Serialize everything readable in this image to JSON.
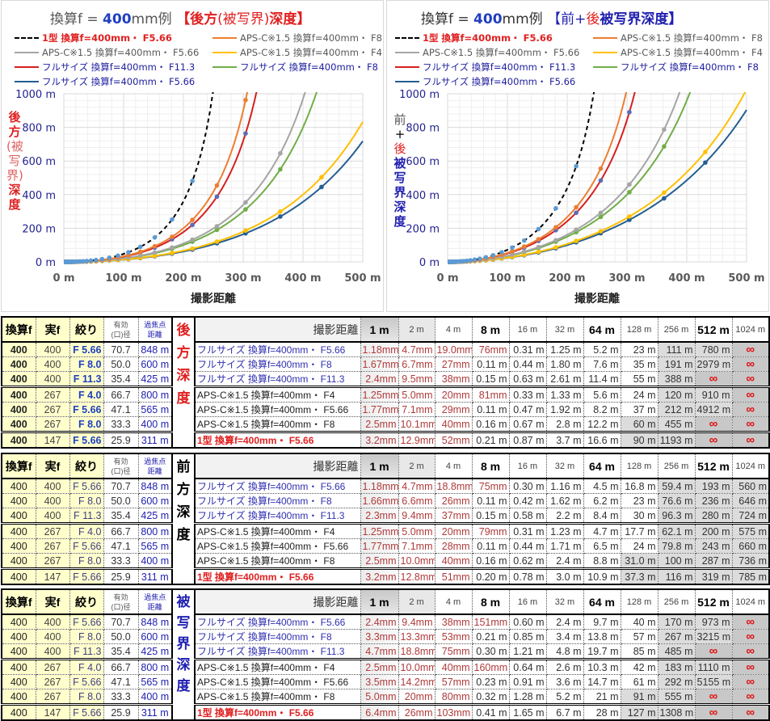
{
  "charts": [
    {
      "id": "left",
      "title": {
        "prefix": "換算f = ",
        "focal": "400",
        "unit": "mm例 ",
        "part1": "【後方",
        "part2": "(被写界)",
        "part3": "深度】"
      },
      "ylabel": {
        "p1": "後方",
        "p2": "(被写界)",
        "p3": "深度"
      },
      "mode": "rear"
    },
    {
      "id": "right",
      "title": {
        "prefix": "換算f = ",
        "focal": "400",
        "unit": "mm例 ",
        "part1": "【前+",
        "part2": "後",
        "part3": "被写界深度】"
      },
      "ylabel": {
        "p1": "前",
        "p2": "+",
        "p3": "後",
        "p4": "被写界深度"
      },
      "mode": "total"
    }
  ],
  "chart_data": {
    "type": "line",
    "xlabel": "撮影距離",
    "xlim": [
      0,
      500
    ],
    "ylim": [
      0,
      1000
    ],
    "xticks": [
      "0 m",
      "100 m",
      "200 m",
      "300 m",
      "400 m",
      "500 m"
    ],
    "yticks": [
      "0 m",
      "200 m",
      "400 m",
      "600 m",
      "800 m",
      "1000 m"
    ],
    "marker_distances": [
      1,
      1.19,
      1.41,
      1.68,
      2,
      2.38,
      2.83,
      3.36,
      4,
      4.76,
      5.66,
      6.73,
      8,
      9.51,
      11.3,
      13.5,
      16,
      19,
      22.6,
      26.9,
      32,
      38.1,
      45.3,
      53.8,
      64,
      76.1,
      90.5,
      108,
      128,
      152,
      181,
      215,
      256,
      304,
      362,
      431
    ],
    "legend_placement": "top",
    "series": [
      {
        "name": "1型 換算f=400mm・ F5.66",
        "hyperfocal": 311,
        "color": "#000000",
        "marker": "#5b9bd5",
        "dash": true,
        "text_color": "#e02020",
        "bold": true
      },
      {
        "name": "APS-C※1.5 換算f=400mm・ F8",
        "hyperfocal": 400,
        "color": "#ed7d31",
        "marker": "#ed7d31",
        "dash": false,
        "text_color": "#595959",
        "bold": false
      },
      {
        "name": "APS-C※1.5 換算f=400mm・ F5.66",
        "hyperfocal": 565,
        "color": "#a5a5a5",
        "marker": "#a5a5a5",
        "dash": false,
        "text_color": "#595959",
        "bold": false
      },
      {
        "name": "APS-C※1.5 換算f=400mm・ F4",
        "hyperfocal": 800,
        "color": "#ffc000",
        "marker": "#ffc000",
        "dash": false,
        "text_color": "#595959",
        "bold": false
      },
      {
        "name": "フルサイズ 換算f=400mm・ F11.3",
        "hyperfocal": 425,
        "color": "#d42020",
        "marker": "#5b6bb8",
        "dash": false,
        "text_color": "#2020a0",
        "bold": false
      },
      {
        "name": "フルサイズ 換算f=400mm・ F8",
        "hyperfocal": 600,
        "color": "#70ad47",
        "marker": "#70ad47",
        "dash": false,
        "text_color": "#2020a0",
        "bold": false
      },
      {
        "name": "フルサイズ 換算f=400mm・ F5.66",
        "hyperfocal": 848,
        "color": "#255e91",
        "marker": "#255e91",
        "dash": false,
        "text_color": "#2020a0",
        "bold": false
      }
    ]
  },
  "table_header": {
    "conv": "換算f",
    "real": "実f",
    "fnum": "絞り",
    "aperture": [
      "有効",
      "(口)径"
    ],
    "hyperfocal": [
      "過焦点",
      "距離"
    ],
    "distance_label": "撮影距離",
    "distances": [
      "1 m",
      "2 m",
      "4 m",
      "8 m",
      "16 m",
      "32 m",
      "64 m",
      "128 m",
      "256 m",
      "512 m",
      "1024 m"
    ]
  },
  "tables": [
    {
      "label": [
        "後",
        "方",
        "深",
        "度"
      ],
      "label_color": "#e02020",
      "bold_left": true,
      "rows": [
        {
          "conv": "400",
          "real": "400",
          "fnum": "F 5.66",
          "aperture": "70.7",
          "hyperfocal": "848 m",
          "desc": "フルサイズ 換算f=400mm・ F5.66",
          "type": "full",
          "shaded_from": 8,
          "values": [
            "1.18mm",
            "4.7mm",
            "19.0mm",
            "76mm",
            "0.31 m",
            "1.25 m",
            "5.2 m",
            "23 m",
            "111 m",
            "780 m",
            "∞"
          ]
        },
        {
          "conv": "400",
          "real": "400",
          "fnum": "F 8.0",
          "aperture": "50.0",
          "hyperfocal": "600 m",
          "desc": "フルサイズ 換算f=400mm・ F8",
          "type": "full",
          "shaded_from": 8,
          "values": [
            "1.67mm",
            "6.7mm",
            "27mm",
            "0.11 m",
            "0.44 m",
            "1.80 m",
            "7.6 m",
            "35 m",
            "191 m",
            "2979 m",
            "∞"
          ]
        },
        {
          "conv": "400",
          "real": "400",
          "fnum": "F 11.3",
          "aperture": "35.4",
          "hyperfocal": "425 m",
          "desc": "フルサイズ 換算f=400mm・ F11.3",
          "type": "full",
          "shaded_from": 8,
          "values": [
            "2.4mm",
            "9.5mm",
            "38mm",
            "0.15 m",
            "0.63 m",
            "2.61 m",
            "11.4 m",
            "55 m",
            "388 m",
            "∞",
            "∞"
          ]
        },
        {
          "conv": "400",
          "real": "267",
          "fnum": "F 4.0",
          "aperture": "66.7",
          "hyperfocal": "800 m",
          "desc": "APS-C※1.5 換算f=400mm・ F4",
          "type": "apsc",
          "shaded_from": 8,
          "values": [
            "1.25mm",
            "5.0mm",
            "20mm",
            "81mm",
            "0.33 m",
            "1.33 m",
            "5.6 m",
            "24 m",
            "120 m",
            "910 m",
            "∞"
          ]
        },
        {
          "conv": "400",
          "real": "267",
          "fnum": "F 5.66",
          "aperture": "47.1",
          "hyperfocal": "565 m",
          "desc": "APS-C※1.5 換算f=400mm・ F5.66",
          "type": "apsc",
          "shaded_from": 8,
          "values": [
            "1.77mm",
            "7.1mm",
            "29mm",
            "0.11 m",
            "0.47 m",
            "1.92 m",
            "8.2 m",
            "37 m",
            "212 m",
            "4912 m",
            "∞"
          ]
        },
        {
          "conv": "400",
          "real": "267",
          "fnum": "F 8.0",
          "aperture": "33.3",
          "hyperfocal": "400 m",
          "desc": "APS-C※1.5 換算f=400mm・ F8",
          "type": "apsc",
          "shaded_from": 7,
          "values": [
            "2.5mm",
            "10.1mm",
            "40mm",
            "0.16 m",
            "0.67 m",
            "2.8 m",
            "12.2 m",
            "60 m",
            "455 m",
            "∞",
            "∞"
          ]
        },
        {
          "conv": "400",
          "real": "147",
          "fnum": "F 5.66",
          "aperture": "25.9",
          "hyperfocal": "311 m",
          "desc": "1型 換算f=400mm・ F5.66",
          "type": "one",
          "shaded_from": 7,
          "values": [
            "3.2mm",
            "12.9mm",
            "52mm",
            "0.21 m",
            "0.87 m",
            "3.7 m",
            "16.6 m",
            "90 m",
            "1193 m",
            "∞",
            "∞"
          ]
        }
      ]
    },
    {
      "label": [
        "前",
        "方",
        "深",
        "度"
      ],
      "label_color": "#000000",
      "bold_left": false,
      "rows": [
        {
          "conv": "400",
          "real": "400",
          "fnum": "F 5.66",
          "aperture": "70.7",
          "hyperfocal": "848 m",
          "desc": "フルサイズ 換算f=400mm・ F5.66",
          "type": "full",
          "shaded_from": 8,
          "values": [
            "1.18mm",
            "4.7mm",
            "18.8mm",
            "75mm",
            "0.30 m",
            "1.16 m",
            "4.5 m",
            "16.8 m",
            "59.4 m",
            "193 m",
            "560 m"
          ]
        },
        {
          "conv": "400",
          "real": "400",
          "fnum": "F 8.0",
          "aperture": "50.0",
          "hyperfocal": "600 m",
          "desc": "フルサイズ 換算f=400mm・ F8",
          "type": "full",
          "shaded_from": 8,
          "values": [
            "1.66mm",
            "6.6mm",
            "26mm",
            "0.11 m",
            "0.42 m",
            "1.62 m",
            "6.2 m",
            "23 m",
            "76.6 m",
            "236 m",
            "646 m"
          ]
        },
        {
          "conv": "400",
          "real": "400",
          "fnum": "F 11.3",
          "aperture": "35.4",
          "hyperfocal": "425 m",
          "desc": "フルサイズ 換算f=400mm・ F11.3",
          "type": "full",
          "shaded_from": 8,
          "values": [
            "2.3mm",
            "9.4mm",
            "37mm",
            "0.15 m",
            "0.58 m",
            "2.2 m",
            "8.4 m",
            "30 m",
            "96.3 m",
            "280 m",
            "724 m"
          ]
        },
        {
          "conv": "400",
          "real": "267",
          "fnum": "F 4.0",
          "aperture": "66.7",
          "hyperfocal": "800 m",
          "desc": "APS-C※1.5 換算f=400mm・ F4",
          "type": "apsc",
          "shaded_from": 8,
          "values": [
            "1.25mm",
            "5.0mm",
            "20mm",
            "79mm",
            "0.31 m",
            "1.23 m",
            "4.7 m",
            "17.7 m",
            "62.1 m",
            "200 m",
            "575 m"
          ]
        },
        {
          "conv": "400",
          "real": "267",
          "fnum": "F 5.66",
          "aperture": "47.1",
          "hyperfocal": "565 m",
          "desc": "APS-C※1.5 換算f=400mm・ F5.66",
          "type": "apsc",
          "shaded_from": 8,
          "values": [
            "1.77mm",
            "7.1mm",
            "28mm",
            "0.11 m",
            "0.44 m",
            "1.71 m",
            "6.5 m",
            "24 m",
            "79.8 m",
            "243 m",
            "660 m"
          ]
        },
        {
          "conv": "400",
          "real": "267",
          "fnum": "F 8.0",
          "aperture": "33.3",
          "hyperfocal": "400 m",
          "desc": "APS-C※1.5 換算f=400mm・ F8",
          "type": "apsc",
          "shaded_from": 7,
          "values": [
            "2.5mm",
            "10.0mm",
            "40mm",
            "0.16 m",
            "0.62 m",
            "2.4 m",
            "8.8 m",
            "31.0 m",
            "100 m",
            "287 m",
            "736 m"
          ]
        },
        {
          "conv": "400",
          "real": "147",
          "fnum": "F 5.66",
          "aperture": "25.9",
          "hyperfocal": "311 m",
          "desc": "1型 換算f=400mm・ F5.66",
          "type": "one",
          "shaded_from": 7,
          "values": [
            "3.2mm",
            "12.8mm",
            "51mm",
            "0.20 m",
            "0.78 m",
            "3.0 m",
            "10.9 m",
            "37.3 m",
            "116 m",
            "319 m",
            "785 m"
          ]
        }
      ]
    },
    {
      "label": [
        "被",
        "写",
        "界",
        "深",
        "度"
      ],
      "label_color": "#2020b0",
      "bold_left": false,
      "rows": [
        {
          "conv": "400",
          "real": "400",
          "fnum": "F 5.66",
          "aperture": "70.7",
          "hyperfocal": "848 m",
          "desc": "フルサイズ 換算f=400mm・ F5.66",
          "type": "full",
          "shaded_from": 8,
          "values": [
            "2.4mm",
            "9.4mm",
            "38mm",
            "151mm",
            "0.60 m",
            "2.4 m",
            "9.7 m",
            "40 m",
            "170 m",
            "973 m",
            "∞"
          ]
        },
        {
          "conv": "400",
          "real": "400",
          "fnum": "F 8.0",
          "aperture": "50.0",
          "hyperfocal": "600 m",
          "desc": "フルサイズ 換算f=400mm・ F8",
          "type": "full",
          "shaded_from": 8,
          "values": [
            "3.3mm",
            "13.3mm",
            "53mm",
            "0.21 m",
            "0.85 m",
            "3.4 m",
            "13.8 m",
            "57 m",
            "267 m",
            "3215 m",
            "∞"
          ]
        },
        {
          "conv": "400",
          "real": "400",
          "fnum": "F 11.3",
          "aperture": "35.4",
          "hyperfocal": "425 m",
          "desc": "フルサイズ 換算f=400mm・ F11.3",
          "type": "full",
          "shaded_from": 8,
          "values": [
            "4.7mm",
            "18.8mm",
            "75mm",
            "0.30 m",
            "1.21 m",
            "4.8 m",
            "19.7 m",
            "85 m",
            "485 m",
            "∞",
            "∞"
          ]
        },
        {
          "conv": "400",
          "real": "267",
          "fnum": "F 4.0",
          "aperture": "66.7",
          "hyperfocal": "800 m",
          "desc": "APS-C※1.5 換算f=400mm・ F4",
          "type": "apsc",
          "shaded_from": 8,
          "values": [
            "2.5mm",
            "10.0mm",
            "40mm",
            "160mm",
            "0.64 m",
            "2.6 m",
            "10.3 m",
            "42 m",
            "183 m",
            "1110 m",
            "∞"
          ]
        },
        {
          "conv": "400",
          "real": "267",
          "fnum": "F 5.66",
          "aperture": "47.1",
          "hyperfocal": "565 m",
          "desc": "APS-C※1.5 換算f=400mm・ F5.66",
          "type": "apsc",
          "shaded_from": 8,
          "values": [
            "3.5mm",
            "14.2mm",
            "57mm",
            "0.23 m",
            "0.91 m",
            "3.6 m",
            "14.7 m",
            "61 m",
            "292 m",
            "5155 m",
            "∞"
          ]
        },
        {
          "conv": "400",
          "real": "267",
          "fnum": "F 8.0",
          "aperture": "33.3",
          "hyperfocal": "400 m",
          "desc": "APS-C※1.5 換算f=400mm・ F8",
          "type": "apsc",
          "shaded_from": 7,
          "values": [
            "5.0mm",
            "20mm",
            "80mm",
            "0.32 m",
            "1.28 m",
            "5.2 m",
            "21 m",
            "91 m",
            "555 m",
            "∞",
            "∞"
          ]
        },
        {
          "conv": "400",
          "real": "147",
          "fnum": "F 5.66",
          "aperture": "25.9",
          "hyperfocal": "311 m",
          "desc": "1型 換算f=400mm・ F5.66",
          "type": "one",
          "shaded_from": 7,
          "values": [
            "6.4mm",
            "26mm",
            "103mm",
            "0.41 m",
            "1.65 m",
            "6.7 m",
            "28 m",
            "127 m",
            "1308 m",
            "∞",
            "∞"
          ]
        }
      ]
    }
  ]
}
